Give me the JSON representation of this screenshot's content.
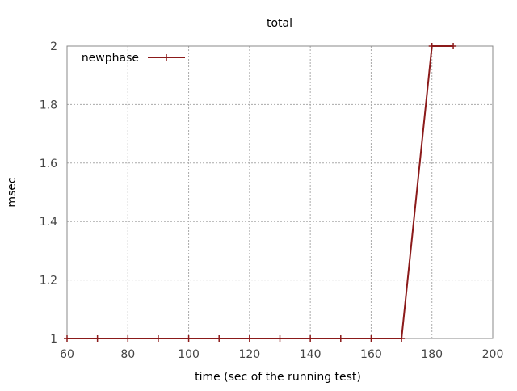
{
  "chart_data": {
    "type": "line",
    "title": "total",
    "xlabel": "time (sec of the running test)",
    "ylabel": "msec",
    "xlim": [
      60,
      200
    ],
    "ylim": [
      1,
      2
    ],
    "x_ticks": [
      "60",
      "80",
      "100",
      "120",
      "140",
      "160",
      "180",
      "200"
    ],
    "y_ticks": [
      "1",
      "1.2",
      "1.4",
      "1.6",
      "1.8",
      "2"
    ],
    "grid": true,
    "legend_position": "top-left",
    "series": [
      {
        "name": "newphase",
        "color": "#8b1a1a",
        "marker": "plus",
        "x": [
          60,
          70,
          80,
          90,
          100,
          110,
          120,
          130,
          140,
          150,
          160,
          170,
          180,
          187
        ],
        "y": [
          1,
          1,
          1,
          1,
          1,
          1,
          1,
          1,
          1,
          1,
          1,
          1,
          2,
          2
        ]
      }
    ]
  }
}
